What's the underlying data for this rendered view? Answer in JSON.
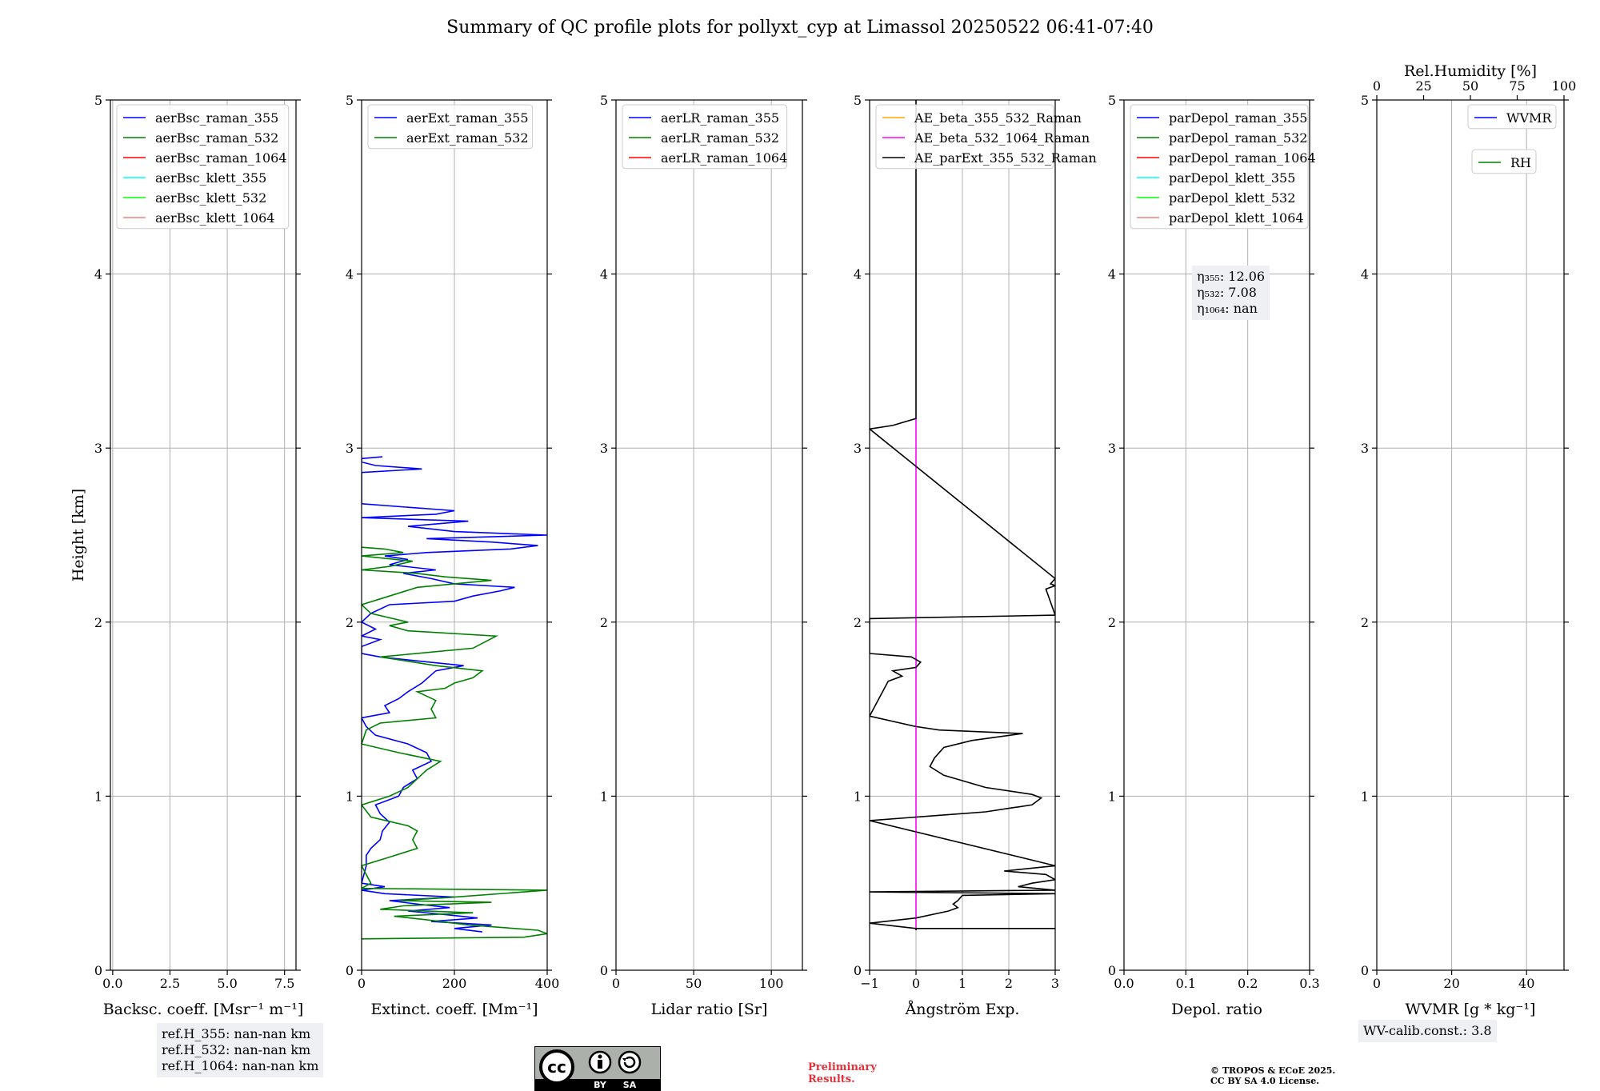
{
  "title": "Summary of QC profile plots for pollyxt_cyp at Limassol 20250522 06:41-07:40",
  "chart_data": [
    {
      "type": "line",
      "name": "backscatter",
      "xlabel": "Backsc. coeff. [Msr⁻¹ m⁻¹]",
      "ylabel": "Height [km]",
      "xlim": [
        -0.1,
        8.0
      ],
      "ylim": [
        0,
        5
      ],
      "xticks": [
        0.0,
        2.5,
        5.0,
        7.5
      ],
      "xtick_labels": [
        "0.0",
        "2.5",
        "5.0",
        "7.5"
      ],
      "yticks": [
        0,
        1,
        2,
        3,
        4,
        5
      ],
      "legend_loc": "upper-left",
      "series": [
        {
          "name": "aerBsc_raman_355",
          "color": "#0000ff",
          "points": []
        },
        {
          "name": "aerBsc_raman_532",
          "color": "#008000",
          "points": []
        },
        {
          "name": "aerBsc_raman_1064",
          "color": "#ff0000",
          "points": []
        },
        {
          "name": "aerBsc_klett_355",
          "color": "#00ffff",
          "points": []
        },
        {
          "name": "aerBsc_klett_532",
          "color": "#00ff00",
          "points": []
        },
        {
          "name": "aerBsc_klett_1064",
          "color": "#f08080",
          "points": []
        }
      ]
    },
    {
      "type": "line",
      "name": "extinction",
      "xlabel": "Extinct. coeff. [Mm⁻¹]",
      "xlim": [
        0,
        400
      ],
      "ylim": [
        0,
        5
      ],
      "xticks": [
        0,
        200,
        400
      ],
      "xtick_labels": [
        "0",
        "200",
        "400"
      ],
      "yticks": [
        0,
        1,
        2,
        3,
        4,
        5
      ],
      "legend_loc": "upper-left",
      "series": [
        {
          "name": "aerExt_raman_355",
          "color": "#0000ff",
          "points": [
            [
              260,
              0.22
            ],
            [
              200,
              0.24
            ],
            [
              280,
              0.26
            ],
            [
              150,
              0.28
            ],
            [
              250,
              0.3
            ],
            [
              180,
              0.32
            ],
            [
              100,
              0.34
            ],
            [
              190,
              0.36
            ],
            [
              120,
              0.38
            ],
            [
              60,
              0.4
            ],
            [
              200,
              0.42
            ],
            [
              50,
              0.44
            ],
            [
              0,
              0.46
            ],
            [
              50,
              0.48
            ],
            [
              0,
              0.5
            ],
            [
              10,
              0.6
            ],
            [
              10,
              0.66
            ],
            [
              20,
              0.7
            ],
            [
              40,
              0.75
            ],
            [
              45,
              0.8
            ],
            [
              60,
              0.85
            ],
            [
              40,
              0.9
            ],
            [
              30,
              0.95
            ],
            [
              80,
              1.0
            ],
            [
              90,
              1.05
            ],
            [
              120,
              1.1
            ],
            [
              110,
              1.15
            ],
            [
              150,
              1.2
            ],
            [
              140,
              1.25
            ],
            [
              100,
              1.3
            ],
            [
              30,
              1.35
            ],
            [
              10,
              1.4
            ],
            [
              0,
              1.45
            ],
            [
              60,
              1.48
            ],
            [
              50,
              1.52
            ],
            [
              80,
              1.56
            ],
            [
              100,
              1.6
            ],
            [
              130,
              1.65
            ],
            [
              160,
              1.72
            ],
            [
              220,
              1.75
            ],
            [
              110,
              1.78
            ],
            [
              40,
              1.8
            ],
            [
              0,
              1.82
            ],
            [
              0,
              1.86
            ],
            [
              40,
              1.9
            ],
            [
              0,
              1.92
            ],
            [
              30,
              1.96
            ],
            [
              0,
              2.0
            ],
            [
              20,
              2.05
            ],
            [
              60,
              2.1
            ],
            [
              200,
              2.12
            ],
            [
              240,
              2.15
            ],
            [
              300,
              2.18
            ],
            [
              330,
              2.2
            ],
            [
              200,
              2.22
            ],
            [
              150,
              2.25
            ],
            [
              90,
              2.28
            ],
            [
              160,
              2.3
            ],
            [
              60,
              2.33
            ],
            [
              100,
              2.36
            ],
            [
              50,
              2.38
            ],
            [
              140,
              2.4
            ],
            [
              320,
              2.42
            ],
            [
              380,
              2.44
            ],
            [
              280,
              2.46
            ],
            [
              140,
              2.48
            ],
            [
              400,
              2.5
            ],
            [
              200,
              2.52
            ],
            [
              100,
              2.55
            ],
            [
              230,
              2.58
            ],
            [
              0,
              2.6
            ],
            [
              160,
              2.62
            ],
            [
              200,
              2.64
            ],
            [
              100,
              2.66
            ],
            [
              0,
              2.68
            ],
            [
              0,
              2.86
            ],
            [
              130,
              2.88
            ],
            [
              30,
              2.9
            ],
            [
              0,
              2.92
            ],
            [
              0,
              2.94
            ],
            [
              45,
              2.95
            ]
          ]
        },
        {
          "name": "aerExt_raman_532",
          "color": "#008000",
          "points": [
            [
              0,
              0.18
            ],
            [
              350,
              0.19
            ],
            [
              400,
              0.21
            ],
            [
              380,
              0.23
            ],
            [
              230,
              0.26
            ],
            [
              140,
              0.29
            ],
            [
              70,
              0.31
            ],
            [
              240,
              0.33
            ],
            [
              40,
              0.35
            ],
            [
              90,
              0.37
            ],
            [
              280,
              0.39
            ],
            [
              80,
              0.4
            ],
            [
              200,
              0.42
            ],
            [
              400,
              0.46
            ],
            [
              0,
              0.47
            ],
            [
              20,
              0.5
            ],
            [
              0,
              0.6
            ],
            [
              60,
              0.65
            ],
            [
              120,
              0.7
            ],
            [
              110,
              0.75
            ],
            [
              120,
              0.8
            ],
            [
              100,
              0.83
            ],
            [
              20,
              0.88
            ],
            [
              0,
              0.95
            ],
            [
              60,
              1.0
            ],
            [
              100,
              1.05
            ],
            [
              120,
              1.1
            ],
            [
              140,
              1.15
            ],
            [
              170,
              1.2
            ],
            [
              80,
              1.25
            ],
            [
              0,
              1.3
            ],
            [
              10,
              1.38
            ],
            [
              40,
              1.42
            ],
            [
              160,
              1.45
            ],
            [
              150,
              1.5
            ],
            [
              160,
              1.55
            ],
            [
              120,
              1.6
            ],
            [
              180,
              1.62
            ],
            [
              200,
              1.65
            ],
            [
              240,
              1.68
            ],
            [
              260,
              1.72
            ],
            [
              160,
              1.75
            ],
            [
              40,
              1.8
            ],
            [
              240,
              1.85
            ],
            [
              290,
              1.92
            ],
            [
              100,
              1.95
            ],
            [
              60,
              1.98
            ],
            [
              100,
              2.0
            ],
            [
              20,
              2.05
            ],
            [
              0,
              2.1
            ],
            [
              60,
              2.15
            ],
            [
              120,
              2.2
            ],
            [
              200,
              2.22
            ],
            [
              280,
              2.24
            ],
            [
              180,
              2.26
            ],
            [
              120,
              2.28
            ],
            [
              0,
              2.3
            ],
            [
              60,
              2.32
            ],
            [
              110,
              2.35
            ],
            [
              0,
              2.38
            ],
            [
              90,
              2.4
            ],
            [
              50,
              2.42
            ],
            [
              0,
              2.43
            ]
          ]
        }
      ]
    },
    {
      "type": "line",
      "name": "lidar_ratio",
      "xlabel": "Lidar ratio [Sr]",
      "xlim": [
        0,
        120
      ],
      "ylim": [
        0,
        5
      ],
      "xticks": [
        0,
        50,
        100
      ],
      "xtick_labels": [
        "0",
        "50",
        "100"
      ],
      "yticks": [
        0,
        1,
        2,
        3,
        4,
        5
      ],
      "legend_loc": "upper-left",
      "series": [
        {
          "name": "aerLR_raman_355",
          "color": "#0000ff",
          "points": []
        },
        {
          "name": "aerLR_raman_532",
          "color": "#008000",
          "points": []
        },
        {
          "name": "aerLR_raman_1064",
          "color": "#ff0000",
          "points": []
        }
      ]
    },
    {
      "type": "line",
      "name": "angstrom",
      "xlabel": "Ångström Exp.",
      "xlim": [
        -1,
        3
      ],
      "ylim": [
        0,
        5
      ],
      "xticks": [
        -1,
        0,
        1,
        2,
        3
      ],
      "xtick_labels": [
        "−1",
        "0",
        "1",
        "2",
        "3"
      ],
      "yticks": [
        0,
        1,
        2,
        3,
        4,
        5
      ],
      "legend_loc": "upper-left",
      "series": [
        {
          "name": "AE_beta_355_532_Raman",
          "color": "#ffa500",
          "points": []
        },
        {
          "name": "AE_beta_532_1064_Raman",
          "color": "#ff00ff",
          "points": [
            [
              0,
              0.23
            ],
            [
              0,
              3.17
            ]
          ]
        },
        {
          "name": "AE_parExt_355_532_Raman",
          "color": "#000000",
          "points": [
            [
              3,
              0.24
            ],
            [
              0,
              0.24
            ],
            [
              0,
              0.23
            ],
            [
              0,
              0.24
            ],
            [
              -1,
              0.27
            ],
            [
              0,
              0.3
            ],
            [
              0.7,
              0.34
            ],
            [
              0.9,
              0.36
            ],
            [
              0.8,
              0.38
            ],
            [
              0.9,
              0.4
            ],
            [
              1.0,
              0.43
            ],
            [
              3,
              0.44
            ],
            [
              -1,
              0.45
            ],
            [
              3,
              0.46
            ],
            [
              2.2,
              0.48
            ],
            [
              2.5,
              0.5
            ],
            [
              3,
              0.52
            ],
            [
              2.8,
              0.55
            ],
            [
              1.9,
              0.57
            ],
            [
              3,
              0.6
            ],
            [
              3,
              0.6
            ],
            [
              -1,
              0.86
            ],
            [
              1.5,
              0.91
            ],
            [
              2.0,
              0.93
            ],
            [
              2.5,
              0.95
            ],
            [
              2.7,
              0.99
            ],
            [
              2.5,
              1.01
            ],
            [
              1.5,
              1.05
            ],
            [
              0.6,
              1.12
            ],
            [
              0.3,
              1.17
            ],
            [
              0.4,
              1.22
            ],
            [
              0.6,
              1.28
            ],
            [
              1.2,
              1.32
            ],
            [
              2.3,
              1.36
            ],
            [
              0.5,
              1.38
            ],
            [
              0,
              1.4
            ],
            [
              -1,
              1.46
            ],
            [
              -0.6,
              1.66
            ],
            [
              -0.3,
              1.69
            ],
            [
              -0.5,
              1.72
            ],
            [
              0,
              1.74
            ],
            [
              0.1,
              1.77
            ],
            [
              -0.1,
              1.8
            ],
            [
              -1,
              1.82
            ],
            [
              -1,
              2.02
            ],
            [
              3,
              2.04
            ],
            [
              3,
              2.04
            ],
            [
              2.8,
              2.19
            ],
            [
              3,
              2.21
            ],
            [
              2.9,
              2.22
            ],
            [
              3,
              2.25
            ],
            [
              3,
              2.25
            ],
            [
              -1,
              3.11
            ],
            [
              -0.5,
              3.13
            ],
            [
              0,
              3.17
            ],
            [
              0,
              5.0
            ]
          ]
        }
      ]
    },
    {
      "type": "line",
      "name": "depolarization",
      "xlabel": "Depol. ratio",
      "xlim": [
        0,
        0.3
      ],
      "ylim": [
        0,
        5
      ],
      "xticks": [
        0.0,
        0.1,
        0.2,
        0.3
      ],
      "xtick_labels": [
        "0.0",
        "0.1",
        "0.2",
        "0.3"
      ],
      "yticks": [
        0,
        1,
        2,
        3,
        4,
        5
      ],
      "legend_loc": "upper-left",
      "series": [
        {
          "name": "parDepol_raman_355",
          "color": "#0000ff",
          "points": []
        },
        {
          "name": "parDepol_raman_532",
          "color": "#008000",
          "points": []
        },
        {
          "name": "parDepol_raman_1064",
          "color": "#ff0000",
          "points": []
        },
        {
          "name": "parDepol_klett_355",
          "color": "#00ffff",
          "points": []
        },
        {
          "name": "parDepol_klett_532",
          "color": "#00ff00",
          "points": []
        },
        {
          "name": "parDepol_klett_1064",
          "color": "#f08080",
          "points": []
        }
      ]
    },
    {
      "type": "line",
      "name": "water_vapor",
      "xlabel": "WVMR [g * kg⁻¹]",
      "top_xlabel": "Rel.Humidity [%]",
      "xlim": [
        0,
        50
      ],
      "top_xlim": [
        0,
        100
      ],
      "ylim": [
        0,
        5
      ],
      "xticks": [
        0,
        20,
        40
      ],
      "xtick_labels": [
        "0",
        "20",
        "40"
      ],
      "top_xticks": [
        0,
        25,
        50,
        75,
        100
      ],
      "top_xtick_labels": [
        "0",
        "25",
        "50",
        "75",
        "100"
      ],
      "yticks": [
        0,
        1,
        2,
        3,
        4,
        5
      ],
      "legend_loc": "upper-right",
      "series": [
        {
          "name": "WVMR",
          "color": "#0000ff",
          "points": []
        },
        {
          "name": "RH",
          "color": "#008000",
          "points": []
        }
      ]
    }
  ],
  "eta_box": {
    "line_355": "η₃₅₅: 12.06",
    "line_532": "η₅₃₂: 7.08",
    "line_1064": "η₁₀₆₄: nan"
  },
  "refh_box": {
    "line_355": "ref.H_355: nan-nan km",
    "line_532": "ref.H_532: nan-nan km",
    "line_1064": "ref.H_1064: nan-nan km"
  },
  "wv_box": {
    "text": "WV-calib.const.: 3.8"
  },
  "license": {
    "by": "BY",
    "sa": "SA",
    "cc": "cc"
  },
  "preliminary": {
    "line1": "Preliminary",
    "line2": "Results."
  },
  "copyright": {
    "line1": "© TROPOS & ECoE 2025.",
    "line2": "CC BY SA 4.0 License."
  }
}
